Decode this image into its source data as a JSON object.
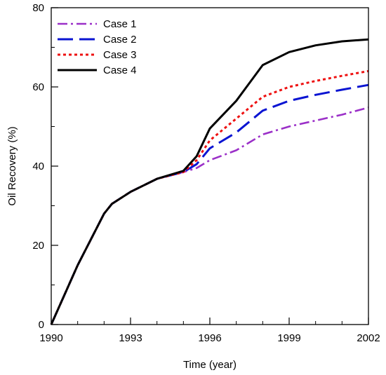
{
  "chart_data": {
    "type": "line",
    "xlabel": "Time (year)",
    "ylabel": "Oil Recovery (%)",
    "xlim": [
      1990,
      2002
    ],
    "ylim": [
      0,
      80
    ],
    "x_ticks": [
      1990,
      1993,
      1996,
      1999,
      2002
    ],
    "x_tick_labels": [
      "1990",
      "1993",
      "1996",
      "1999",
      "2002"
    ],
    "x_minor_step": 1,
    "y_ticks": [
      0,
      20,
      40,
      60,
      80
    ],
    "y_tick_labels": [
      "0",
      "20",
      "40",
      "60",
      "80"
    ],
    "y_minor_step": 10,
    "grid": false,
    "legend_position": "top-left",
    "series": [
      {
        "name": "Case 1",
        "color": "#9b30c8",
        "style": "dashdot",
        "x": [
          1990,
          1991,
          1992,
          1992.3,
          1993,
          1994,
          1995,
          1995.5,
          1996,
          1997,
          1998,
          1999,
          2000,
          2001,
          2002
        ],
        "y": [
          0,
          15,
          28,
          30.5,
          33.5,
          36.8,
          38.5,
          39.5,
          41.5,
          44,
          48,
          50,
          51.5,
          53,
          54.8
        ]
      },
      {
        "name": "Case 2",
        "color": "#0a14d2",
        "style": "longdash",
        "x": [
          1990,
          1991,
          1992,
          1992.3,
          1993,
          1994,
          1995,
          1995.5,
          1996,
          1997,
          1998,
          1999,
          2000,
          2001,
          2002
        ],
        "y": [
          0,
          15,
          28,
          30.5,
          33.5,
          36.8,
          38.5,
          40.5,
          44.5,
          48.5,
          54,
          56.5,
          58,
          59.3,
          60.5
        ]
      },
      {
        "name": "Case 3",
        "color": "#ee1111",
        "style": "dotted",
        "x": [
          1990,
          1991,
          1992,
          1992.3,
          1993,
          1994,
          1995,
          1995.5,
          1996,
          1997,
          1998,
          1999,
          2000,
          2001,
          2002
        ],
        "y": [
          0,
          15,
          28,
          30.5,
          33.5,
          36.8,
          38.5,
          41.5,
          46.5,
          52,
          57.5,
          60,
          61.5,
          62.8,
          64
        ]
      },
      {
        "name": "Case 4",
        "color": "#000000",
        "style": "solid",
        "x": [
          1990,
          1991,
          1992,
          1992.3,
          1993,
          1994,
          1995,
          1995.5,
          1996,
          1997,
          1998,
          1999,
          2000,
          2001,
          2002
        ],
        "y": [
          0,
          15,
          28,
          30.5,
          33.5,
          36.8,
          38.8,
          42.5,
          49.5,
          56.5,
          65.5,
          68.8,
          70.5,
          71.5,
          72
        ]
      }
    ]
  }
}
